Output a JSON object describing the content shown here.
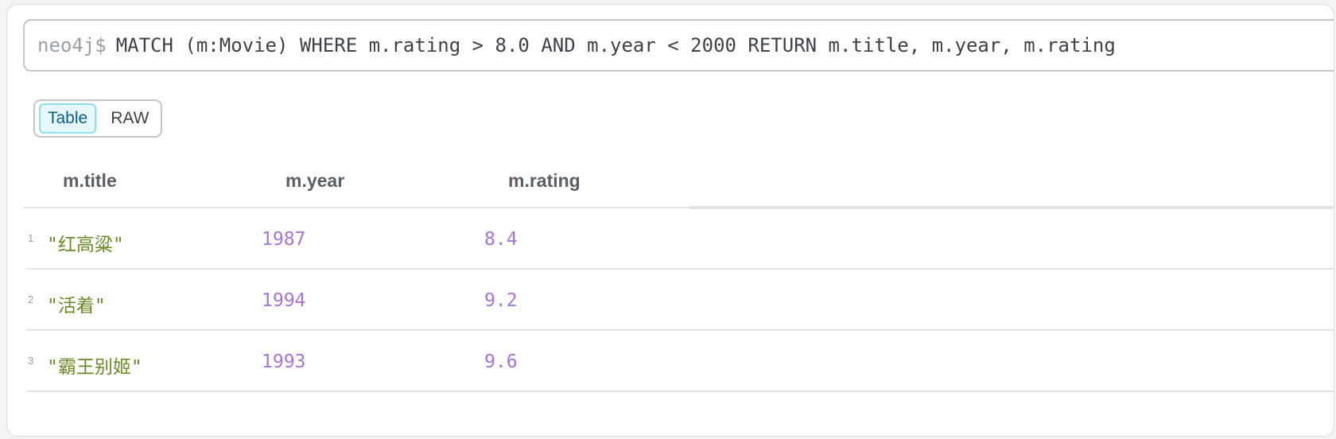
{
  "query": {
    "prompt": "neo4j$",
    "text": "MATCH (m:Movie) WHERE m.rating > 8.0 AND m.year < 2000 RETURN m.title, m.year, m.rating"
  },
  "view_toggle": {
    "options": [
      "Table",
      "RAW"
    ],
    "selected": "Table"
  },
  "table": {
    "columns": [
      "m.title",
      "m.year",
      "m.rating"
    ],
    "rows": [
      {
        "index": "1",
        "title": "\"红高粱\"",
        "year": "1987",
        "rating": "8.4"
      },
      {
        "index": "2",
        "title": "\"活着\"",
        "year": "1994",
        "rating": "9.2"
      },
      {
        "index": "3",
        "title": "\"霸王别姬\"",
        "year": "1993",
        "rating": "9.6"
      }
    ]
  },
  "colors": {
    "string": "#6b8a2a",
    "number": "#a676d6",
    "active_tab_bg": "#e5f8fb",
    "active_tab_border": "#8fe0ea"
  }
}
